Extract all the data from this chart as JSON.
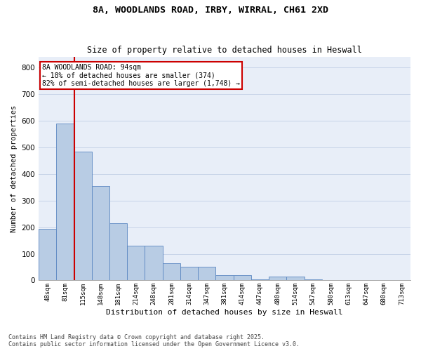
{
  "title_line1": "8A, WOODLANDS ROAD, IRBY, WIRRAL, CH61 2XD",
  "title_line2": "Size of property relative to detached houses in Heswall",
  "xlabel": "Distribution of detached houses by size in Heswall",
  "ylabel": "Number of detached properties",
  "categories": [
    "48sqm",
    "81sqm",
    "115sqm",
    "148sqm",
    "181sqm",
    "214sqm",
    "248sqm",
    "281sqm",
    "314sqm",
    "347sqm",
    "381sqm",
    "414sqm",
    "447sqm",
    "480sqm",
    "514sqm",
    "547sqm",
    "580sqm",
    "613sqm",
    "647sqm",
    "680sqm",
    "713sqm"
  ],
  "values": [
    195,
    590,
    485,
    355,
    215,
    130,
    130,
    65,
    50,
    50,
    20,
    20,
    5,
    15,
    15,
    5,
    0,
    0,
    0,
    0,
    0
  ],
  "bar_color": "#b8cce4",
  "bar_edgecolor": "#5b87c1",
  "grid_color": "#c8d4e8",
  "background_color": "#e8eef8",
  "annotation_text": "8A WOODLANDS ROAD: 94sqm\n← 18% of detached houses are smaller (374)\n82% of semi-detached houses are larger (1,748) →",
  "annotation_box_edgecolor": "#cc0000",
  "reference_line_color": "#cc0000",
  "footer_line1": "Contains HM Land Registry data © Crown copyright and database right 2025.",
  "footer_line2": "Contains public sector information licensed under the Open Government Licence v3.0.",
  "ylim": [
    0,
    840
  ],
  "yticks": [
    0,
    100,
    200,
    300,
    400,
    500,
    600,
    700,
    800
  ]
}
